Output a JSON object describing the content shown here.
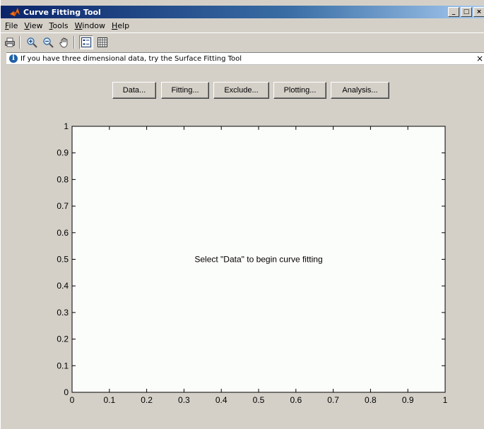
{
  "window": {
    "title": "Curve Fitting Tool",
    "controls": {
      "minimize": "_",
      "maximize": "□",
      "close": "×"
    }
  },
  "menu": [
    {
      "label": "File",
      "mnemonic": "F",
      "rest": "ile"
    },
    {
      "label": "View",
      "mnemonic": "V",
      "rest": "iew"
    },
    {
      "label": "Tools",
      "mnemonic": "T",
      "rest": "ools"
    },
    {
      "label": "Window",
      "mnemonic": "W",
      "rest": "indow"
    },
    {
      "label": "Help",
      "mnemonic": "H",
      "rest": "elp"
    }
  ],
  "toolbar": {
    "icons": [
      "print-icon",
      "zoom-in-icon",
      "zoom-out-icon",
      "pan-icon",
      "legend-icon",
      "grid-icon"
    ],
    "legend_pressed": true
  },
  "info_bar": {
    "text": "If you have three dimensional data, try the Surface Fitting Tool",
    "close": "×"
  },
  "actions": {
    "data": "Data...",
    "fitting": "Fitting...",
    "exclude": "Exclude...",
    "plotting": "Plotting...",
    "analysis": "Analysis..."
  },
  "chart_data": {
    "type": "scatter",
    "title": "",
    "xlabel": "",
    "ylabel": "",
    "xlim": [
      0,
      1
    ],
    "ylim": [
      0,
      1
    ],
    "x_ticks": [
      "0",
      "0.1",
      "0.2",
      "0.3",
      "0.4",
      "0.5",
      "0.6",
      "0.7",
      "0.8",
      "0.9",
      "1"
    ],
    "y_ticks": [
      "0",
      "0.1",
      "0.2",
      "0.3",
      "0.4",
      "0.5",
      "0.6",
      "0.7",
      "0.8",
      "0.9",
      "1"
    ],
    "series": [],
    "grid": false,
    "message": "Select \"Data\" to begin curve fitting"
  },
  "colors": {
    "titlebar_start": "#0a246a",
    "titlebar_end": "#a6caf0",
    "window_bg": "#d4d0c8",
    "plot_bg": "#fbfdfa"
  }
}
